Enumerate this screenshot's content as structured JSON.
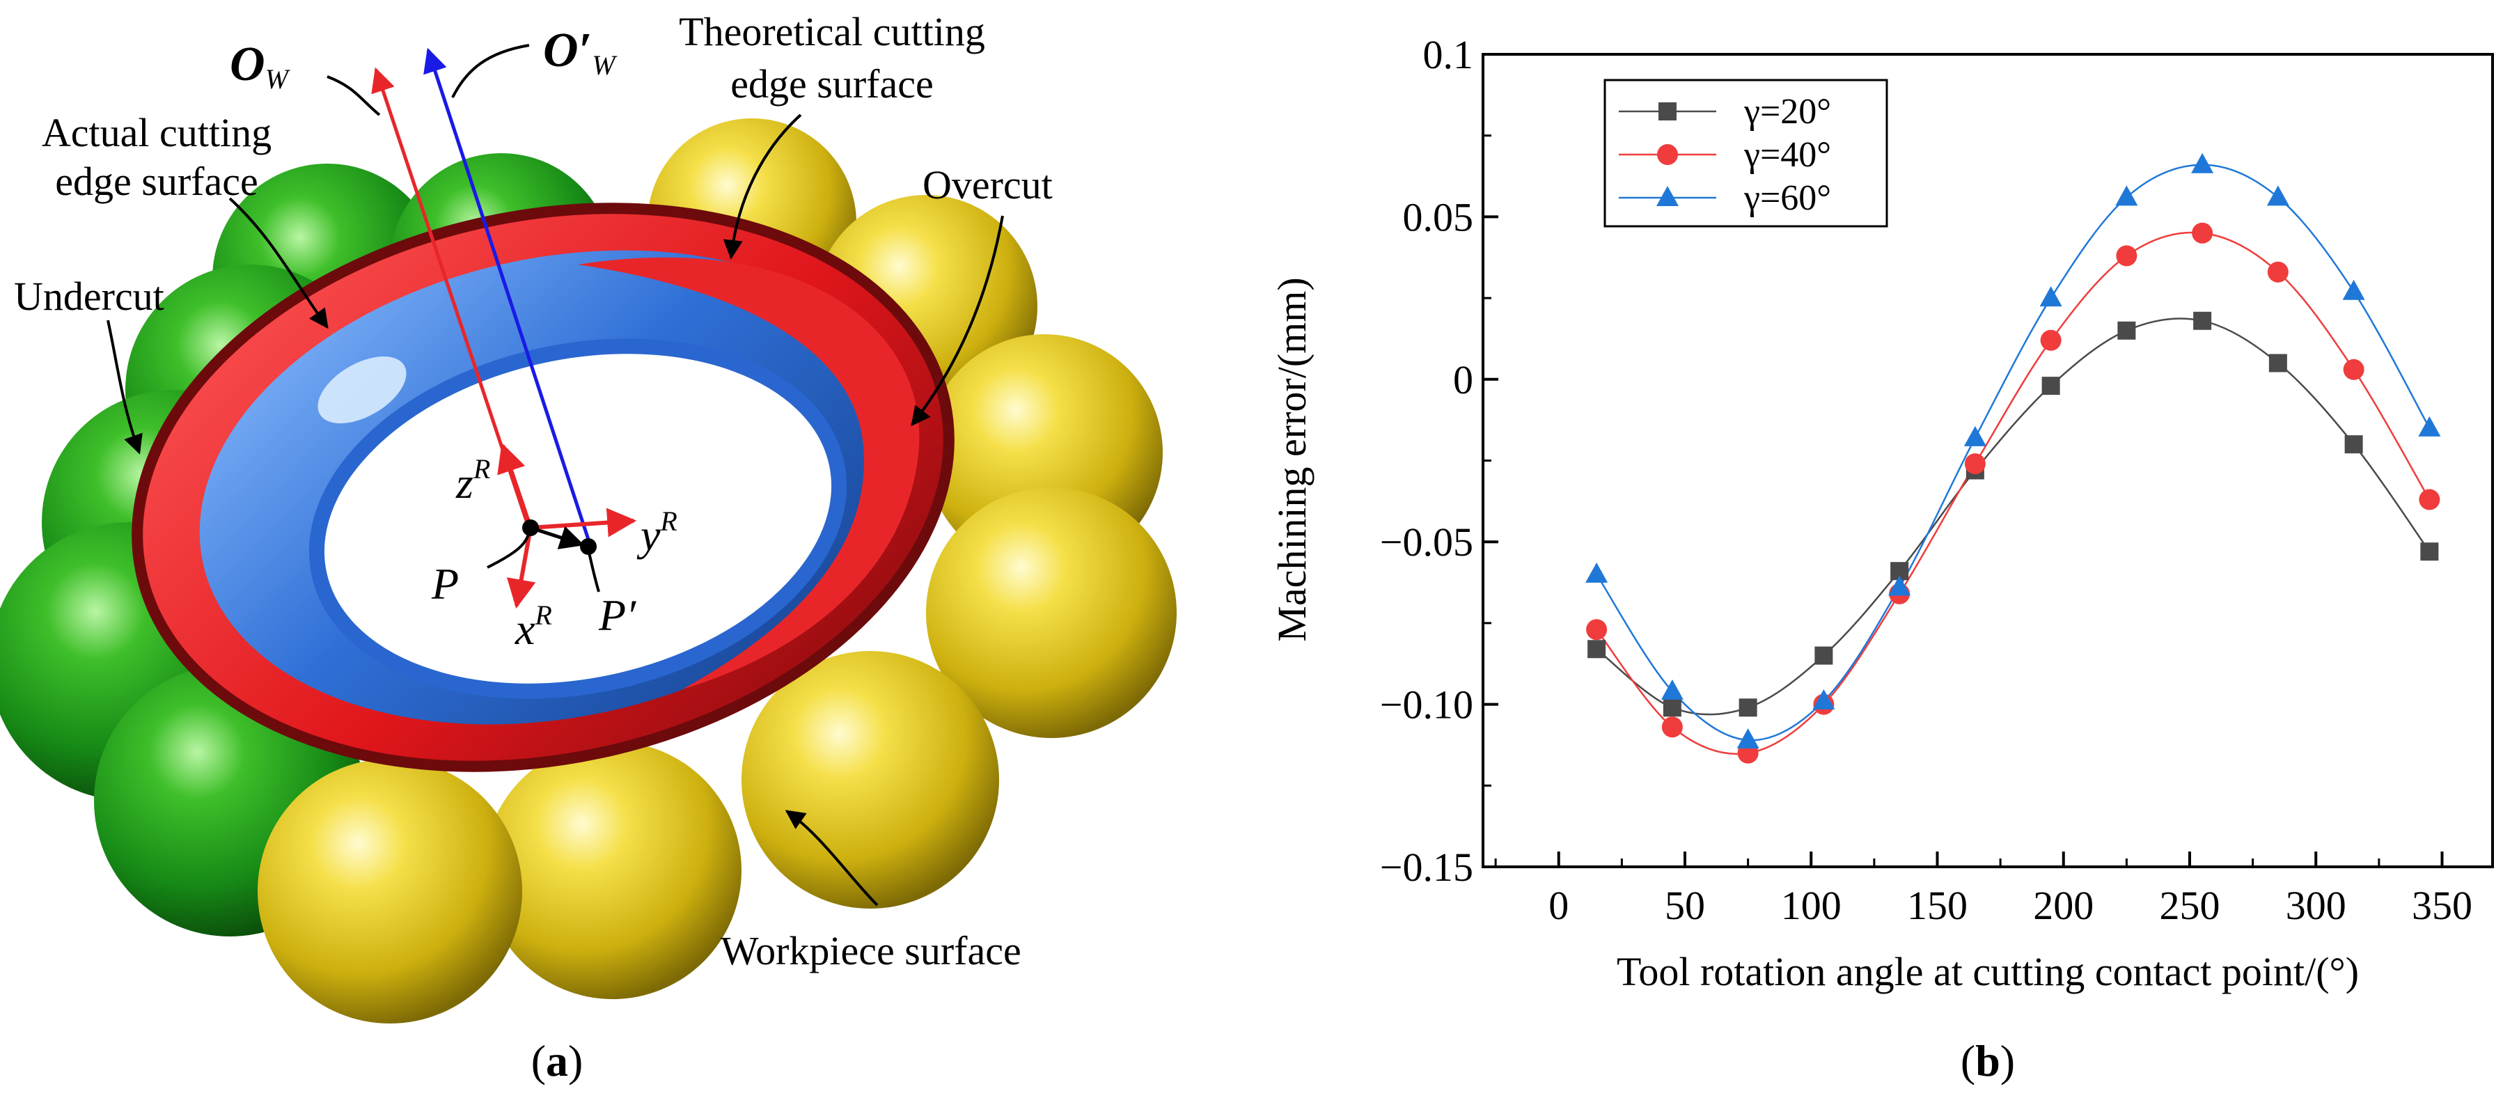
{
  "panel_a": {
    "caption_open": "(",
    "caption_letter": "a",
    "caption_close": ")",
    "labels": {
      "ow_main": "O",
      "ow_sub": "W",
      "ow_prime_main": "O′",
      "ow_prime_sub": "W",
      "theoretical_line1": "Theoretical cutting",
      "theoretical_line2": "edge surface",
      "actual_line1": "Actual cutting",
      "actual_line2": "edge surface",
      "overcut": "Overcut",
      "undercut": "Undercut",
      "workpiece": "Workpiece surface",
      "z_main": "z",
      "y_main": "y",
      "x_main": "x",
      "r_sup": "R",
      "p": "P",
      "p_prime": "P′"
    },
    "colors": {
      "red_surface": "#e8262a",
      "dark_red": "#8c0f12",
      "blue_surface": "#2f6fd6",
      "green_sphere": "#1f9a1f",
      "yellow_sphere": "#d9c21a",
      "axis_red": "#e8262a",
      "axis_blue": "#1a1ae6"
    }
  },
  "panel_b": {
    "caption_open": "(",
    "caption_letter": "b",
    "caption_close": ")"
  },
  "chart_data": {
    "type": "line",
    "title": "",
    "xlabel": "Tool rotation angle at cutting contact point/(°)",
    "ylabel": "Machining error/(mm)",
    "xlim": [
      -30,
      370
    ],
    "ylim": [
      -0.15,
      0.1
    ],
    "x_ticks": [
      0,
      50,
      100,
      150,
      200,
      250,
      300,
      350
    ],
    "x_tick_labels": [
      "0",
      "50",
      "100",
      "150",
      "200",
      "250",
      "300",
      "350"
    ],
    "y_ticks": [
      -0.15,
      -0.1,
      -0.05,
      0,
      0.05,
      0.1
    ],
    "y_tick_labels": [
      "−0.15",
      "−0.10",
      "−0.05",
      "0",
      "0.05",
      "0.1"
    ],
    "legend_position": "top-left",
    "x": [
      15,
      45,
      75,
      105,
      135,
      165,
      195,
      225,
      255,
      285,
      315,
      345
    ],
    "series": [
      {
        "name": "γ=20°",
        "marker": "square",
        "color": "#4a4a4a",
        "values": [
          -0.083,
          -0.101,
          -0.101,
          -0.085,
          -0.059,
          -0.028,
          -0.002,
          0.015,
          0.018,
          0.005,
          -0.02,
          -0.053
        ]
      },
      {
        "name": "γ=40°",
        "marker": "circle",
        "color": "#f03c3c",
        "values": [
          -0.077,
          -0.107,
          -0.115,
          -0.1,
          -0.066,
          -0.026,
          0.012,
          0.038,
          0.045,
          0.033,
          0.003,
          -0.037
        ]
      },
      {
        "name": "γ=60°",
        "marker": "triangle",
        "color": "#1f78d8",
        "values": [
          -0.06,
          -0.096,
          -0.111,
          -0.099,
          -0.064,
          -0.018,
          0.025,
          0.056,
          0.066,
          0.056,
          0.027,
          -0.015
        ]
      }
    ]
  }
}
